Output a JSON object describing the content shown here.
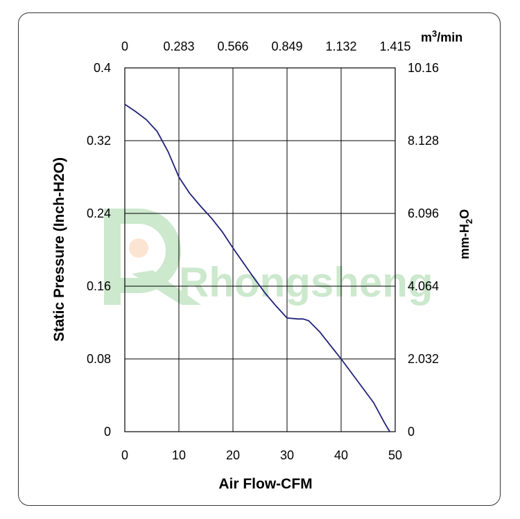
{
  "watermark": {
    "text": "Rhongsheng",
    "color": "#4caf50"
  },
  "chart_data": {
    "type": "line",
    "xlabel": "Air Flow-CFM",
    "ylabel": "Static Pressure (Inch-H2O)",
    "xlim": [
      0,
      50
    ],
    "ylim": [
      0,
      0.4
    ],
    "x_ticks": [
      "0",
      "10",
      "20",
      "30",
      "40",
      "50"
    ],
    "y_ticks": [
      "0",
      "0.08",
      "0.16",
      "0.24",
      "0.32",
      "0.4"
    ],
    "top_axis": {
      "unit_base": "m",
      "unit_sup": "3",
      "unit_rest": "/min",
      "ticks": [
        "0",
        "0.283",
        "0.566",
        "0.849",
        "1.132",
        "1.415"
      ]
    },
    "right_axis": {
      "unit_base": "mm-H",
      "unit_sub": "2",
      "unit_rest": "O",
      "ticks": [
        "0",
        "2.032",
        "4.064",
        "6.096",
        "8.128",
        "10.16"
      ]
    },
    "grid": true,
    "line_color": "#1f1f7a",
    "series": [
      {
        "x": [
          0,
          2,
          4,
          6,
          8,
          10,
          12,
          14,
          16,
          18,
          20,
          22,
          24,
          26,
          28,
          30,
          32,
          33,
          34,
          36,
          38,
          40,
          42,
          44,
          46,
          48,
          49
        ],
        "y": [
          0.36,
          0.352,
          0.343,
          0.33,
          0.308,
          0.28,
          0.262,
          0.248,
          0.235,
          0.22,
          0.202,
          0.185,
          0.168,
          0.152,
          0.138,
          0.125,
          0.124,
          0.124,
          0.122,
          0.11,
          0.095,
          0.08,
          0.064,
          0.048,
          0.032,
          0.01,
          0
        ]
      }
    ]
  }
}
